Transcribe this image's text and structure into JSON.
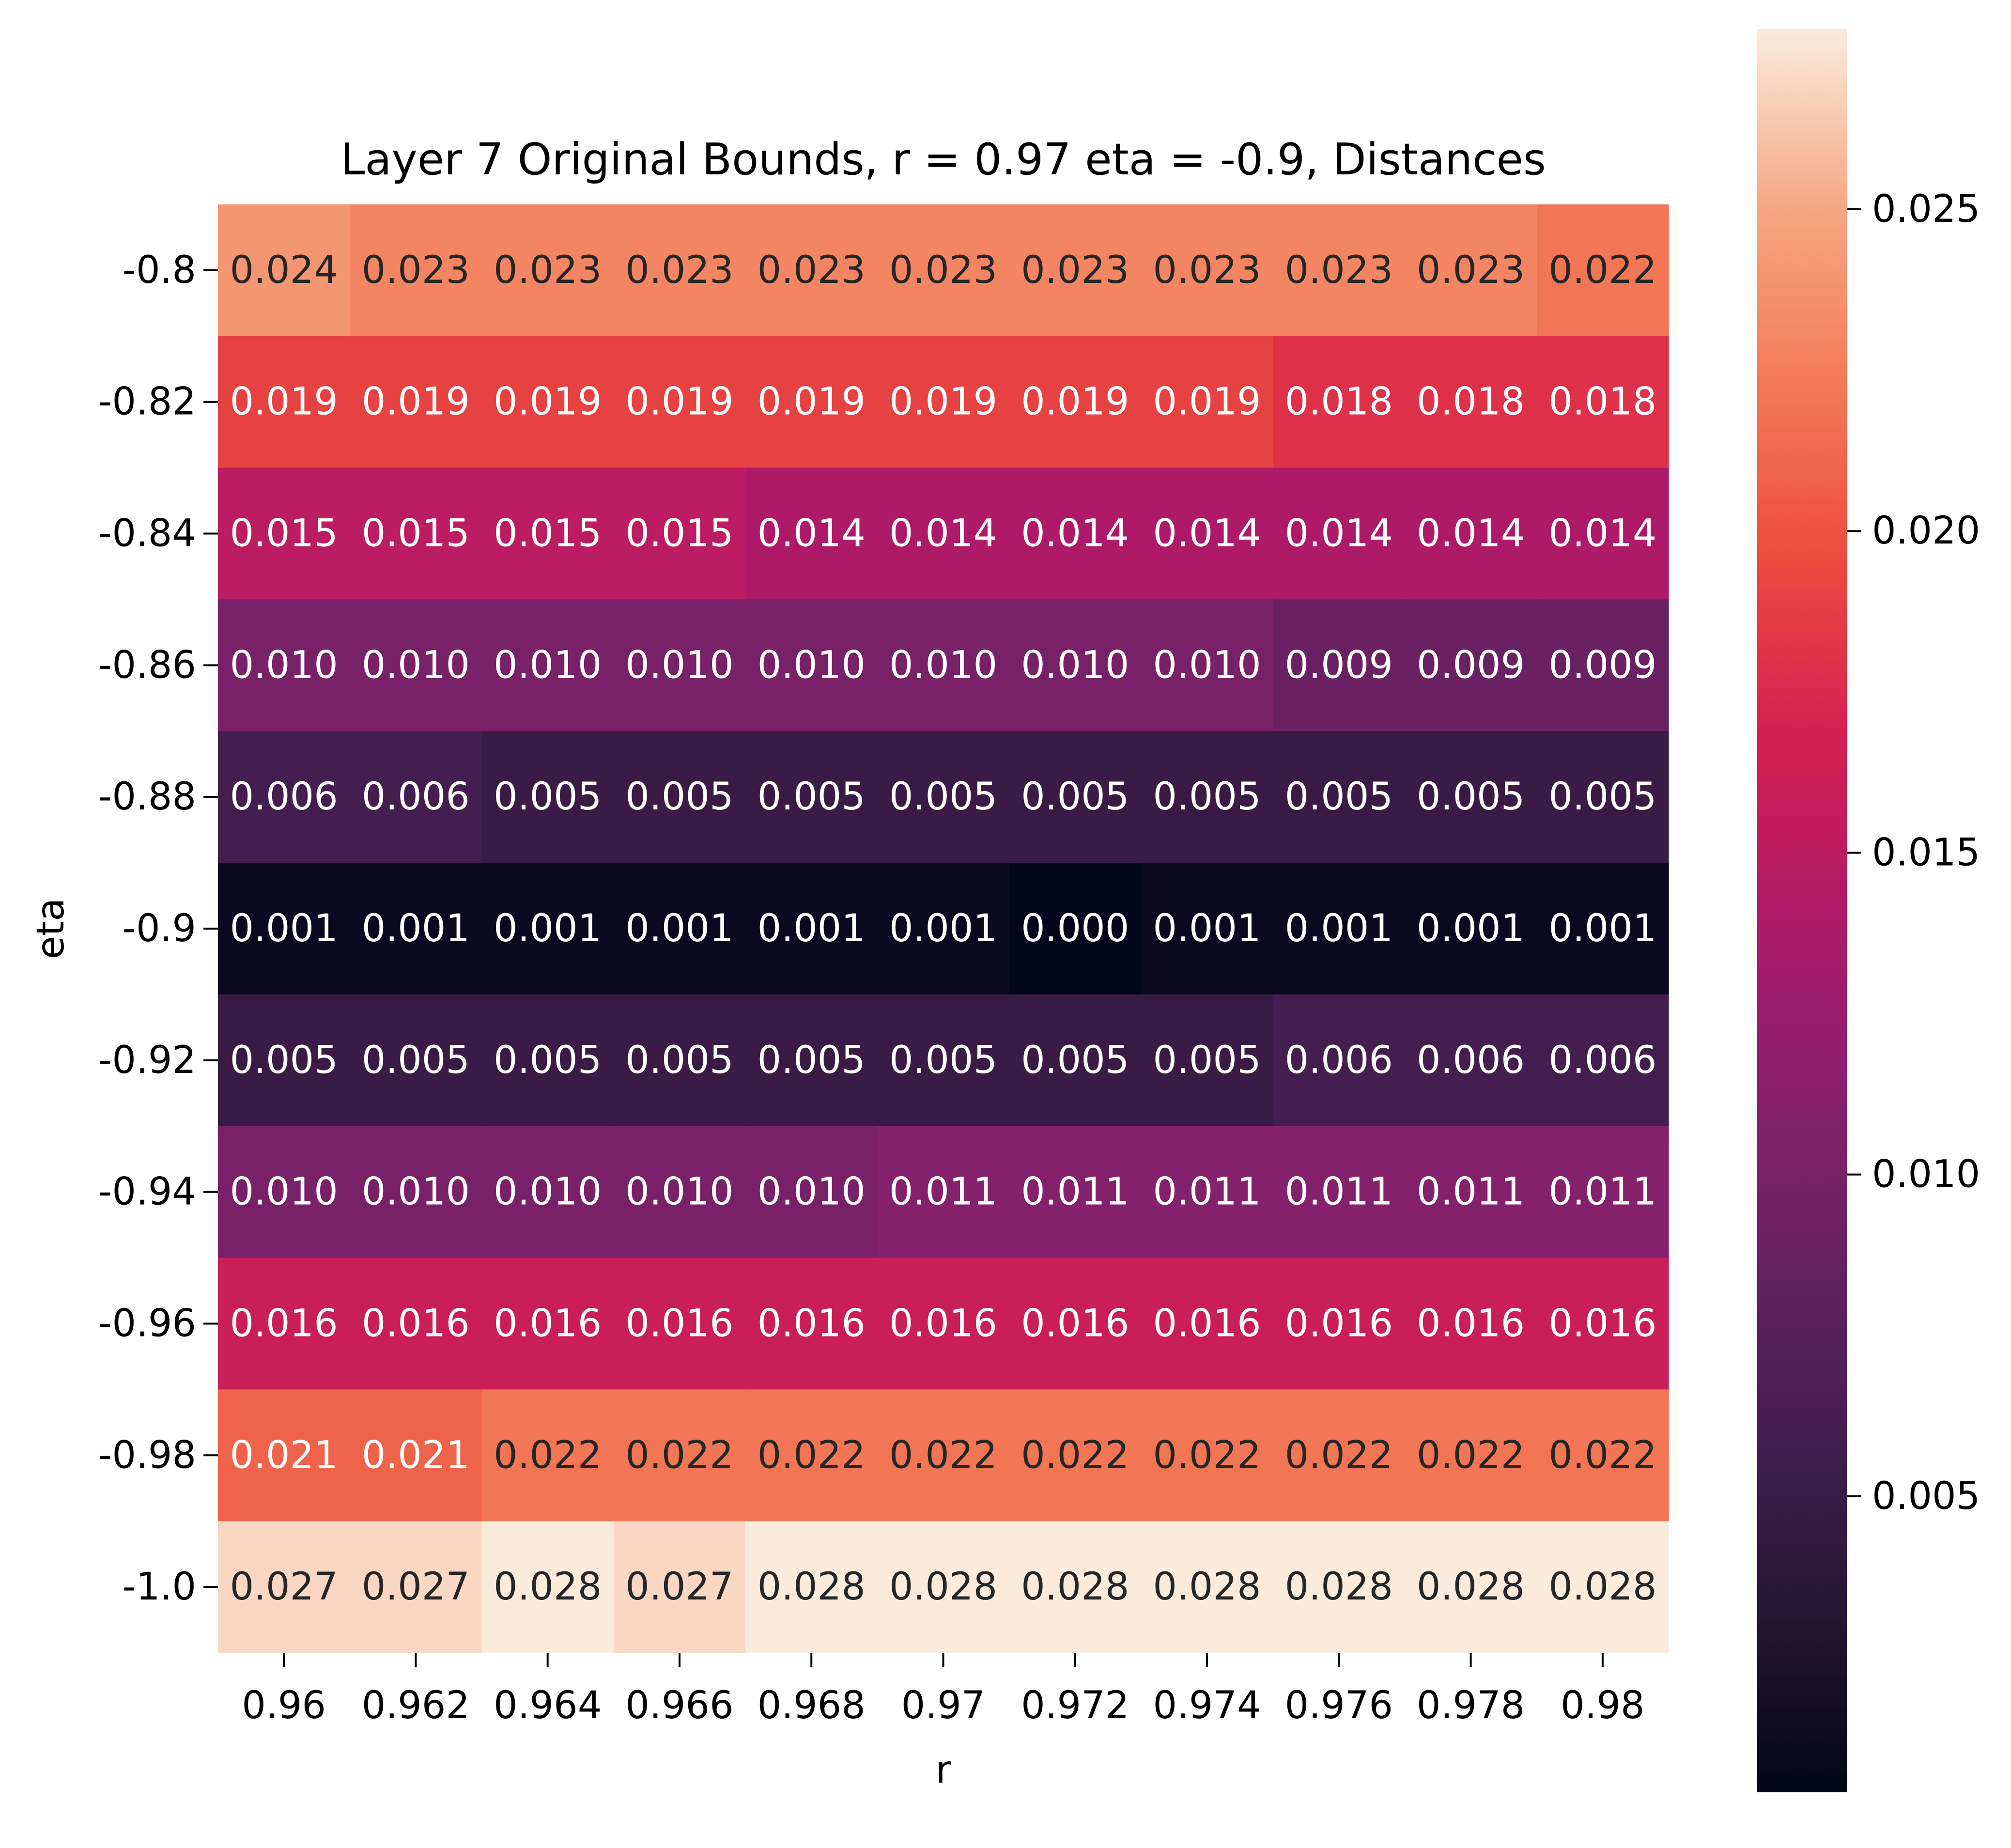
{
  "chart_data": {
    "type": "heatmap",
    "title": "Layer 7 Original Bounds, r = 0.97 eta = -0.9, Distances",
    "xlabel": "r",
    "ylabel": "eta",
    "x_categories": [
      "0.96",
      "0.962",
      "0.964",
      "0.966",
      "0.968",
      "0.97",
      "0.972",
      "0.974",
      "0.976",
      "0.978",
      "0.98"
    ],
    "y_categories": [
      "-0.8",
      "-0.82",
      "-0.84",
      "-0.86",
      "-0.88",
      "-0.9",
      "-0.92",
      "-0.94",
      "-0.96",
      "-0.98",
      "-1.0"
    ],
    "values": [
      [
        0.024,
        0.023,
        0.023,
        0.023,
        0.023,
        0.023,
        0.023,
        0.023,
        0.023,
        0.023,
        0.022
      ],
      [
        0.019,
        0.019,
        0.019,
        0.019,
        0.019,
        0.019,
        0.019,
        0.019,
        0.018,
        0.018,
        0.018
      ],
      [
        0.015,
        0.015,
        0.015,
        0.015,
        0.014,
        0.014,
        0.014,
        0.014,
        0.014,
        0.014,
        0.014
      ],
      [
        0.01,
        0.01,
        0.01,
        0.01,
        0.01,
        0.01,
        0.01,
        0.01,
        0.009,
        0.009,
        0.009
      ],
      [
        0.006,
        0.006,
        0.005,
        0.005,
        0.005,
        0.005,
        0.005,
        0.005,
        0.005,
        0.005,
        0.005
      ],
      [
        0.001,
        0.001,
        0.001,
        0.001,
        0.001,
        0.001,
        0.0,
        0.001,
        0.001,
        0.001,
        0.001
      ],
      [
        0.005,
        0.005,
        0.005,
        0.005,
        0.005,
        0.005,
        0.005,
        0.005,
        0.006,
        0.006,
        0.006
      ],
      [
        0.01,
        0.01,
        0.01,
        0.01,
        0.01,
        0.011,
        0.011,
        0.011,
        0.011,
        0.011,
        0.011
      ],
      [
        0.016,
        0.016,
        0.016,
        0.016,
        0.016,
        0.016,
        0.016,
        0.016,
        0.016,
        0.016,
        0.016
      ],
      [
        0.021,
        0.021,
        0.022,
        0.022,
        0.022,
        0.022,
        0.022,
        0.022,
        0.022,
        0.022,
        0.022
      ],
      [
        0.027,
        0.027,
        0.028,
        0.027,
        0.028,
        0.028,
        0.028,
        0.028,
        0.028,
        0.028,
        0.028
      ]
    ],
    "annotation_format": "3 decimals",
    "colormap": "rocket",
    "colorbar": {
      "range": [
        0.0004,
        0.0278
      ],
      "ticks": [
        0.005,
        0.01,
        0.015,
        0.02,
        0.025
      ],
      "tick_labels": [
        "0.005",
        "0.010",
        "0.015",
        "0.020",
        "0.025"
      ]
    }
  }
}
